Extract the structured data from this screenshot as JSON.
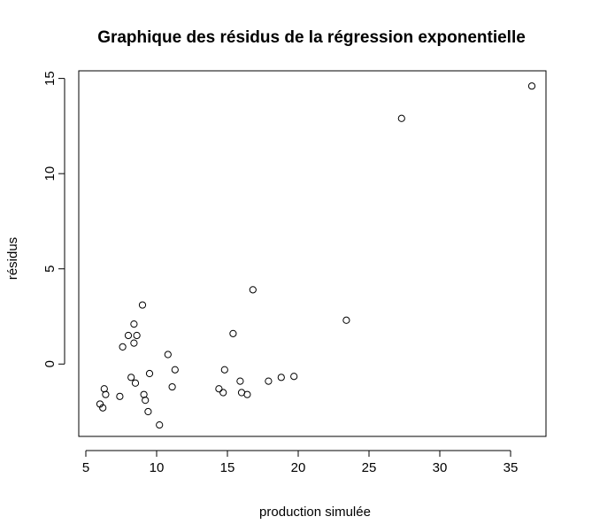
{
  "chart_data": {
    "type": "scatter",
    "title": "Graphique des résidus de la régression exponentielle",
    "xlabel": "production simulée",
    "ylabel": "résidus",
    "xlim": [
      4.5,
      37.5
    ],
    "ylim": [
      -3.8,
      15.4
    ],
    "x_ticks": [
      5,
      10,
      15,
      20,
      25,
      30,
      35
    ],
    "y_ticks": [
      0,
      5,
      10,
      15
    ],
    "grid": false,
    "series": [
      {
        "x": [
          6.0,
          6.2,
          6.3,
          6.4,
          7.4,
          7.6,
          8.0,
          8.2,
          8.4,
          8.4,
          8.5,
          8.6,
          9.0,
          9.1,
          9.2,
          9.4,
          9.5,
          10.2,
          10.8,
          11.1,
          11.3,
          14.4,
          14.7,
          14.8,
          15.4,
          15.9,
          16.0,
          16.4,
          16.8,
          17.9,
          18.8,
          19.7,
          23.4,
          27.3,
          36.5
        ],
        "y": [
          -2.1,
          -2.3,
          -1.3,
          -1.6,
          -1.7,
          0.9,
          1.5,
          -0.7,
          2.1,
          1.1,
          -1.0,
          1.5,
          3.1,
          -1.6,
          -1.9,
          -2.5,
          -0.5,
          -3.2,
          0.5,
          -1.2,
          -0.3,
          -1.3,
          -1.5,
          -0.3,
          1.6,
          -0.9,
          -1.5,
          -1.6,
          3.9,
          -0.9,
          -0.7,
          -0.65,
          2.3,
          12.9,
          14.6
        ]
      }
    ]
  }
}
